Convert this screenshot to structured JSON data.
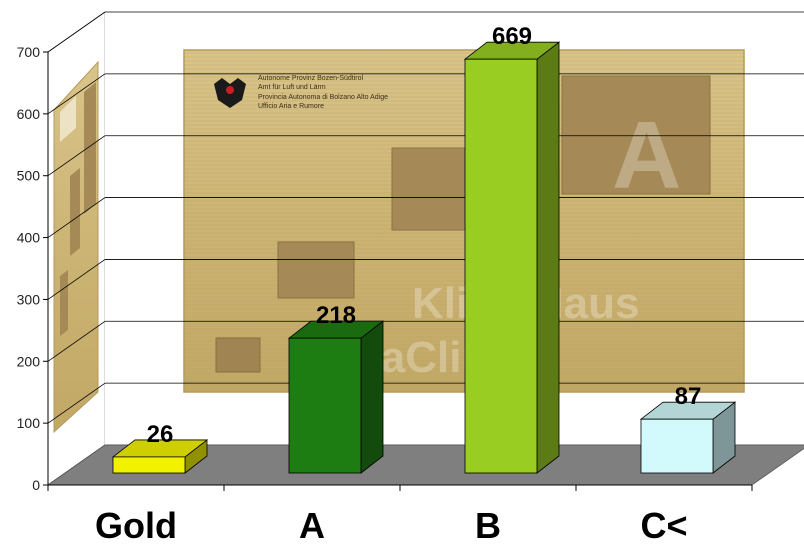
{
  "chart_data": {
    "type": "bar",
    "style": "3d-column",
    "categories": [
      "Gold",
      "A",
      "B",
      "C<"
    ],
    "values": [
      26,
      218,
      669,
      87
    ],
    "bar_colors": [
      "#f2f200",
      "#1e7d12",
      "#9acd22",
      "#d2fafc"
    ],
    "data_labels": [
      "26",
      "218",
      "669",
      "87"
    ],
    "title": "",
    "xlabel": "",
    "ylabel": "",
    "ylim": [
      0,
      700
    ],
    "yticks": [
      "0",
      "100",
      "200",
      "300",
      "400",
      "500",
      "600",
      "700"
    ],
    "grid": true,
    "floor_color": "#7f7f7f",
    "background_image": {
      "kind": "climate-house-certificate-plaque",
      "text_lines": [
        "Autonome Provinz Bozen-Südtirol",
        "Amt für Luft und Lärm",
        "Provincia Autonoma di Bolzano Alto Adige",
        "Ufficio Aria e Rumore"
      ],
      "large_letter": "A",
      "watermark_lines": [
        "KlimaHaus",
        "CasaClima"
      ]
    }
  }
}
